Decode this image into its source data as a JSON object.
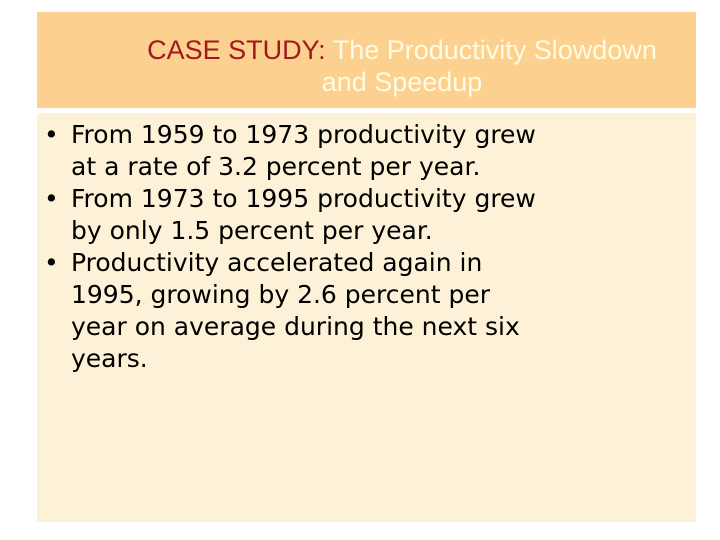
{
  "slide": {
    "title": {
      "label": "CASE STUDY:",
      "line1": " The Productivity Slowdown",
      "line2": "and Speedup"
    },
    "bullets": [
      {
        "lines": [
          "From 1959 to 1973 productivity grew",
          "at a rate of 3.2 percent per year."
        ]
      },
      {
        "lines": [
          "From 1973 to 1995 productivity grew",
          "by only 1.5 percent per year."
        ]
      },
      {
        "lines": [
          "Productivity accelerated again in",
          "1995, growing by 2.6 percent per",
          "year on average during the next six",
          "years."
        ]
      }
    ],
    "bullet_glyph": "•"
  }
}
